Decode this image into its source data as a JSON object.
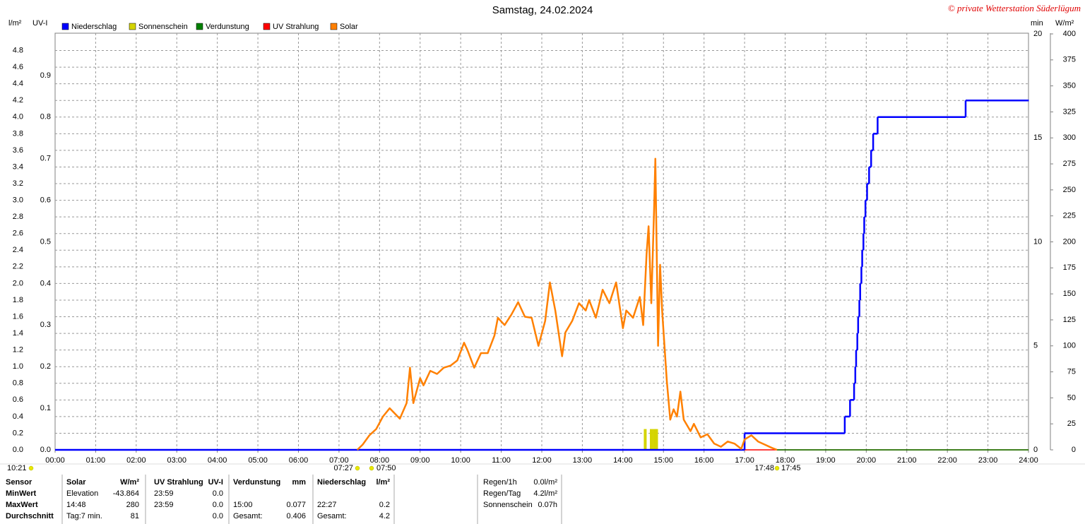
{
  "chart_data": {
    "type": "line",
    "title": "Samstag, 24.02.2024",
    "annotation": "© private Wetterstation Süderlügum",
    "xlim": [
      0,
      24
    ],
    "xticks": [
      {
        "value": 0,
        "label": "00:00"
      },
      {
        "value": 1,
        "label": "01:00"
      },
      {
        "value": 2,
        "label": "02:00"
      },
      {
        "value": 3,
        "label": "03:00"
      },
      {
        "value": 4,
        "label": "04:00"
      },
      {
        "value": 5,
        "label": "05:00"
      },
      {
        "value": 6,
        "label": "06:00"
      },
      {
        "value": 7,
        "label": "07:00"
      },
      {
        "value": 8,
        "label": "08:00"
      },
      {
        "value": 9,
        "label": "09:00"
      },
      {
        "value": 10,
        "label": "10:00"
      },
      {
        "value": 11,
        "label": "11:00"
      },
      {
        "value": 12,
        "label": "12:00"
      },
      {
        "value": 13,
        "label": "13:00"
      },
      {
        "value": 14,
        "label": "14:00"
      },
      {
        "value": 15,
        "label": "15:00"
      },
      {
        "value": 16,
        "label": "16:00"
      },
      {
        "value": 17,
        "label": "17:00"
      },
      {
        "value": 18,
        "label": "18:00"
      },
      {
        "value": 19,
        "label": "19:00"
      },
      {
        "value": 20,
        "label": "20:00"
      },
      {
        "value": 21,
        "label": "21:00"
      },
      {
        "value": 22,
        "label": "22:00"
      },
      {
        "value": 23,
        "label": "23:00"
      },
      {
        "value": 24,
        "label": "24:00"
      }
    ],
    "grid": true,
    "axes": [
      {
        "label": "l/m²",
        "color": "#0000cc",
        "lim": [
          0,
          5
        ],
        "ticks": [
          {
            "value": 0,
            "label": "0.0"
          },
          0.2,
          0.4,
          0.6,
          0.8,
          {
            "value": 1,
            "label": "1.0"
          },
          1.2,
          1.4,
          1.6,
          1.8,
          {
            "value": 2,
            "label": "2.0"
          },
          2.2,
          2.4,
          2.6,
          2.8,
          {
            "value": 3,
            "label": "3.0"
          },
          3.2,
          3.4,
          3.6,
          3.8,
          {
            "value": 4,
            "label": "4.0"
          },
          4.2,
          4.4,
          4.6,
          4.8
        ]
      },
      {
        "label": "UV-I",
        "color": "#cc0000",
        "lim": [
          0,
          1
        ],
        "ticks": [
          {
            "value": 0,
            "label": "0.0"
          },
          0.1,
          0.2,
          0.3,
          0.4,
          0.5,
          0.6,
          0.7,
          0.8,
          0.9
        ]
      },
      {
        "label": "min",
        "color": "#c8c800",
        "lim": [
          0,
          20
        ],
        "ticks": [
          0,
          5,
          10,
          15,
          20
        ]
      },
      {
        "label": "W/m²",
        "color": "#e07000",
        "lim": [
          0,
          400
        ],
        "ticks": [
          0,
          25,
          50,
          75,
          100,
          125,
          150,
          175,
          200,
          225,
          250,
          275,
          300,
          325,
          350,
          375,
          400
        ]
      }
    ],
    "series": [
      {
        "name": "Niederschlag",
        "color": "#0000ff",
        "axis": 0,
        "style": "step",
        "x": [
          0,
          17,
          19.47,
          19.6,
          19.7,
          19.73,
          19.75,
          19.78,
          19.8,
          19.83,
          19.85,
          19.88,
          19.9,
          19.93,
          19.95,
          19.98,
          20.02,
          20.07,
          20.12,
          20.17,
          20.28,
          22.45,
          24
        ],
        "values": [
          0,
          0.2,
          0.4,
          0.6,
          0.8,
          1,
          1.2,
          1.4,
          1.6,
          1.8,
          2,
          2.2,
          2.4,
          2.6,
          2.8,
          3,
          3.2,
          3.4,
          3.6,
          3.8,
          4,
          4.2,
          4.2
        ]
      },
      {
        "name": "Sonnenschein",
        "color": "#d4d400",
        "axis": 2,
        "style": "bar",
        "x": [
          14.55,
          14.7,
          14.77,
          14.83
        ],
        "values": [
          1,
          1,
          1,
          1
        ]
      },
      {
        "name": "Verdunstung",
        "color": "#008000",
        "axis": 0,
        "style": "line",
        "x": [
          17.8,
          24
        ],
        "values": [
          0,
          0
        ]
      },
      {
        "name": "UV Strahlung",
        "color": "#ff0000",
        "axis": 1,
        "style": "line",
        "x": [
          0,
          24
        ],
        "values": [
          0,
          0
        ]
      },
      {
        "name": "Solar",
        "color": "#ff8000",
        "axis": 3,
        "style": "line",
        "x": [
          7.45,
          7.583,
          7.75,
          7.917,
          8.083,
          8.25,
          8.5,
          8.667,
          8.75,
          8.833,
          9,
          9.083,
          9.25,
          9.417,
          9.583,
          9.75,
          9.917,
          10.083,
          10.167,
          10.333,
          10.5,
          10.667,
          10.833,
          10.917,
          11.083,
          11.25,
          11.417,
          11.583,
          11.75,
          11.917,
          12.083,
          12.2,
          12.333,
          12.5,
          12.583,
          12.75,
          12.917,
          13.083,
          13.167,
          13.333,
          13.5,
          13.667,
          13.833,
          14,
          14.083,
          14.25,
          14.417,
          14.5,
          14.583,
          14.633,
          14.7,
          14.767,
          14.8,
          14.867,
          14.917,
          14.967,
          15.083,
          15.167,
          15.25,
          15.333,
          15.417,
          15.5,
          15.667,
          15.75,
          15.917,
          16.083,
          16.25,
          16.417,
          16.583,
          16.75,
          16.917,
          17,
          17.167,
          17.333,
          17.5,
          17.667,
          17.8
        ],
        "values": [
          0,
          5,
          14,
          20,
          32,
          40,
          30,
          45,
          79,
          45,
          69,
          62,
          76,
          73,
          79,
          81,
          86,
          103,
          96,
          79,
          93,
          93,
          110,
          127,
          120,
          130,
          142,
          128,
          127,
          100,
          124,
          161,
          134,
          90,
          113,
          124,
          141,
          134,
          144,
          127,
          154,
          141,
          161,
          117,
          134,
          127,
          147,
          120,
          188,
          215,
          141,
          229,
          280,
          100,
          178,
          134,
          66,
          29,
          39,
          32,
          56,
          29,
          18,
          25,
          12,
          15,
          6,
          3,
          8,
          6,
          1,
          10,
          14,
          8,
          5,
          2,
          0
        ]
      }
    ],
    "sun_markers": [
      "10:21",
      "07:27",
      "07:50",
      "17:48",
      "17:45"
    ]
  },
  "stats": {
    "header": [
      "Sensor",
      "Solar",
      "W/m²",
      "UV Strahlung",
      "UV-I",
      "Verdunstung",
      "mm",
      "Niederschlag",
      "l/m²"
    ],
    "rows": [
      [
        "MinWert",
        "Elevation",
        "-43.864",
        "23:59",
        "0.0",
        null,
        null,
        null,
        null
      ],
      [
        "MaxWert",
        "14:48",
        "280",
        "23:59",
        "0.0",
        "15:00",
        "0.077",
        "22:27",
        "0.2"
      ],
      [
        "Durchschnitt",
        "Tag:7 min.",
        "81",
        null,
        "0.0",
        "Gesamt:",
        "0.406",
        "Gesamt:",
        "4.2"
      ]
    ],
    "summary": [
      [
        "Regen/1h",
        "0.0l/m²"
      ],
      [
        "Regen/Tag",
        "4.2l/m²"
      ],
      [
        "Sonnenschein",
        "0.07h"
      ]
    ]
  }
}
